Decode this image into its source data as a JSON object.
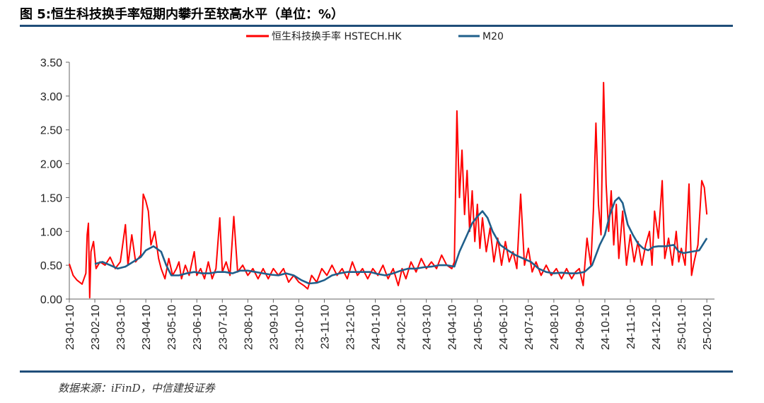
{
  "figure": {
    "title": "图 5:恒生科技换手率短期内攀升至较高水平（单位：%）",
    "source": "数据来源：iFinD，中信建投证券"
  },
  "chart_data": {
    "type": "line",
    "ylim": [
      0,
      3.5
    ],
    "y_ticks": [
      "0.00",
      "0.50",
      "1.00",
      "1.50",
      "2.00",
      "2.50",
      "3.00",
      "3.50"
    ],
    "x_ticks": [
      "23-01-10",
      "23-02-10",
      "23-03-10",
      "23-04-10",
      "23-05-10",
      "23-06-10",
      "23-07-10",
      "23-08-10",
      "23-09-10",
      "23-10-10",
      "23-11-10",
      "23-12-10",
      "24-01-10",
      "24-02-10",
      "24-03-10",
      "24-04-10",
      "24-05-10",
      "24-06-10",
      "24-07-10",
      "24-08-10",
      "24-09-10",
      "24-10-10",
      "24-11-10",
      "24-12-10",
      "25-01-10",
      "25-02-10"
    ],
    "x_range_months": [
      0,
      25.3
    ],
    "legend_position": "top-center",
    "series": [
      {
        "name": "恒生科技换手率 HSTECH.HK",
        "color": "#ff0000",
        "points": [
          [
            0,
            0.52
          ],
          [
            0.15,
            0.35
          ],
          [
            0.3,
            0.28
          ],
          [
            0.5,
            0.22
          ],
          [
            0.65,
            0.38
          ],
          [
            0.7,
            0.95
          ],
          [
            0.75,
            1.12
          ],
          [
            0.8,
            0.02
          ],
          [
            0.85,
            0.7
          ],
          [
            0.95,
            0.85
          ],
          [
            1.05,
            0.45
          ],
          [
            1.2,
            0.55
          ],
          [
            1.4,
            0.5
          ],
          [
            1.6,
            0.62
          ],
          [
            1.8,
            0.45
          ],
          [
            2.0,
            0.55
          ],
          [
            2.2,
            1.1
          ],
          [
            2.3,
            0.5
          ],
          [
            2.45,
            0.95
          ],
          [
            2.6,
            0.55
          ],
          [
            2.8,
            0.65
          ],
          [
            2.9,
            1.55
          ],
          [
            3.0,
            1.45
          ],
          [
            3.1,
            1.3
          ],
          [
            3.2,
            0.8
          ],
          [
            3.35,
            1.0
          ],
          [
            3.5,
            0.6
          ],
          [
            3.6,
            0.45
          ],
          [
            3.75,
            0.3
          ],
          [
            3.9,
            0.6
          ],
          [
            4.05,
            0.35
          ],
          [
            4.2,
            0.45
          ],
          [
            4.3,
            0.55
          ],
          [
            4.4,
            0.3
          ],
          [
            4.55,
            0.5
          ],
          [
            4.7,
            0.35
          ],
          [
            4.9,
            0.7
          ],
          [
            5.0,
            0.35
          ],
          [
            5.15,
            0.45
          ],
          [
            5.3,
            0.3
          ],
          [
            5.45,
            0.55
          ],
          [
            5.6,
            0.3
          ],
          [
            5.75,
            0.45
          ],
          [
            5.9,
            1.2
          ],
          [
            6.0,
            0.4
          ],
          [
            6.15,
            0.55
          ],
          [
            6.3,
            0.35
          ],
          [
            6.45,
            1.22
          ],
          [
            6.6,
            0.4
          ],
          [
            6.8,
            0.5
          ],
          [
            7.0,
            0.35
          ],
          [
            7.2,
            0.45
          ],
          [
            7.4,
            0.3
          ],
          [
            7.6,
            0.45
          ],
          [
            7.8,
            0.3
          ],
          [
            8.0,
            0.45
          ],
          [
            8.2,
            0.35
          ],
          [
            8.4,
            0.45
          ],
          [
            8.6,
            0.25
          ],
          [
            8.8,
            0.35
          ],
          [
            9.0,
            0.25
          ],
          [
            9.2,
            0.2
          ],
          [
            9.35,
            0.15
          ],
          [
            9.5,
            0.35
          ],
          [
            9.7,
            0.25
          ],
          [
            9.9,
            0.45
          ],
          [
            10.1,
            0.35
          ],
          [
            10.3,
            0.5
          ],
          [
            10.5,
            0.35
          ],
          [
            10.7,
            0.45
          ],
          [
            10.9,
            0.3
          ],
          [
            11.1,
            0.55
          ],
          [
            11.3,
            0.35
          ],
          [
            11.5,
            0.45
          ],
          [
            11.7,
            0.3
          ],
          [
            11.9,
            0.45
          ],
          [
            12.1,
            0.35
          ],
          [
            12.3,
            0.5
          ],
          [
            12.5,
            0.3
          ],
          [
            12.7,
            0.45
          ],
          [
            12.9,
            0.2
          ],
          [
            13.05,
            0.45
          ],
          [
            13.2,
            0.3
          ],
          [
            13.4,
            0.55
          ],
          [
            13.6,
            0.4
          ],
          [
            13.8,
            0.6
          ],
          [
            14.0,
            0.45
          ],
          [
            14.2,
            0.55
          ],
          [
            14.4,
            0.45
          ],
          [
            14.6,
            0.65
          ],
          [
            14.8,
            0.5
          ],
          [
            15.0,
            0.45
          ],
          [
            15.1,
            0.55
          ],
          [
            15.2,
            2.78
          ],
          [
            15.3,
            1.5
          ],
          [
            15.4,
            2.2
          ],
          [
            15.5,
            1.25
          ],
          [
            15.6,
            1.9
          ],
          [
            15.7,
            1.0
          ],
          [
            15.8,
            1.6
          ],
          [
            15.9,
            0.85
          ],
          [
            16.0,
            1.4
          ],
          [
            16.1,
            0.75
          ],
          [
            16.2,
            1.2
          ],
          [
            16.35,
            0.7
          ],
          [
            16.5,
            1.05
          ],
          [
            16.65,
            0.55
          ],
          [
            16.8,
            0.9
          ],
          [
            16.95,
            0.5
          ],
          [
            17.1,
            0.85
          ],
          [
            17.25,
            0.55
          ],
          [
            17.4,
            0.7
          ],
          [
            17.55,
            0.45
          ],
          [
            17.7,
            1.55
          ],
          [
            17.85,
            0.5
          ],
          [
            18.0,
            0.75
          ],
          [
            18.15,
            0.4
          ],
          [
            18.3,
            0.55
          ],
          [
            18.5,
            0.35
          ],
          [
            18.7,
            0.5
          ],
          [
            18.9,
            0.35
          ],
          [
            19.1,
            0.45
          ],
          [
            19.3,
            0.3
          ],
          [
            19.5,
            0.45
          ],
          [
            19.7,
            0.3
          ],
          [
            19.85,
            0.4
          ],
          [
            20.0,
            0.45
          ],
          [
            20.15,
            0.2
          ],
          [
            20.3,
            0.9
          ],
          [
            20.45,
            0.5
          ],
          [
            20.55,
            1.3
          ],
          [
            20.65,
            2.6
          ],
          [
            20.75,
            1.4
          ],
          [
            20.85,
            0.95
          ],
          [
            20.95,
            3.2
          ],
          [
            21.05,
            1.7
          ],
          [
            21.15,
            1.0
          ],
          [
            21.25,
            1.6
          ],
          [
            21.35,
            0.8
          ],
          [
            21.45,
            1.4
          ],
          [
            21.55,
            0.6
          ],
          [
            21.7,
            1.3
          ],
          [
            21.85,
            0.5
          ],
          [
            22.0,
            0.95
          ],
          [
            22.15,
            0.55
          ],
          [
            22.3,
            0.85
          ],
          [
            22.45,
            0.5
          ],
          [
            22.6,
            0.8
          ],
          [
            22.75,
            1.0
          ],
          [
            22.85,
            0.5
          ],
          [
            22.95,
            1.3
          ],
          [
            23.1,
            0.9
          ],
          [
            23.25,
            1.75
          ],
          [
            23.35,
            0.6
          ],
          [
            23.5,
            0.9
          ],
          [
            23.65,
            0.5
          ],
          [
            23.8,
            1.0
          ],
          [
            23.9,
            0.55
          ],
          [
            24.0,
            0.75
          ],
          [
            24.15,
            0.5
          ],
          [
            24.3,
            1.7
          ],
          [
            24.4,
            0.35
          ],
          [
            24.5,
            0.55
          ],
          [
            24.65,
            0.8
          ],
          [
            24.8,
            1.75
          ],
          [
            24.9,
            1.65
          ],
          [
            25.0,
            1.25
          ]
        ]
      },
      {
        "name": "M20",
        "color": "#1f5f8b",
        "points": [
          [
            1.0,
            0.52
          ],
          [
            1.3,
            0.55
          ],
          [
            1.6,
            0.5
          ],
          [
            1.9,
            0.45
          ],
          [
            2.2,
            0.48
          ],
          [
            2.5,
            0.55
          ],
          [
            2.8,
            0.62
          ],
          [
            3.0,
            0.72
          ],
          [
            3.3,
            0.78
          ],
          [
            3.6,
            0.7
          ],
          [
            3.8,
            0.5
          ],
          [
            4.0,
            0.35
          ],
          [
            4.3,
            0.35
          ],
          [
            4.6,
            0.38
          ],
          [
            4.9,
            0.4
          ],
          [
            5.2,
            0.38
          ],
          [
            5.5,
            0.38
          ],
          [
            5.8,
            0.4
          ],
          [
            6.1,
            0.4
          ],
          [
            6.4,
            0.38
          ],
          [
            6.7,
            0.42
          ],
          [
            7.0,
            0.42
          ],
          [
            7.3,
            0.4
          ],
          [
            7.6,
            0.38
          ],
          [
            7.9,
            0.36
          ],
          [
            8.2,
            0.35
          ],
          [
            8.5,
            0.38
          ],
          [
            8.8,
            0.35
          ],
          [
            9.1,
            0.28
          ],
          [
            9.4,
            0.23
          ],
          [
            9.7,
            0.24
          ],
          [
            10.0,
            0.28
          ],
          [
            10.3,
            0.35
          ],
          [
            10.6,
            0.38
          ],
          [
            10.9,
            0.4
          ],
          [
            11.2,
            0.4
          ],
          [
            11.5,
            0.4
          ],
          [
            11.8,
            0.4
          ],
          [
            12.1,
            0.37
          ],
          [
            12.4,
            0.35
          ],
          [
            12.7,
            0.38
          ],
          [
            13.0,
            0.42
          ],
          [
            13.3,
            0.45
          ],
          [
            13.6,
            0.45
          ],
          [
            13.9,
            0.47
          ],
          [
            14.2,
            0.48
          ],
          [
            14.5,
            0.5
          ],
          [
            14.8,
            0.5
          ],
          [
            15.1,
            0.48
          ],
          [
            15.3,
            0.7
          ],
          [
            15.6,
            0.95
          ],
          [
            15.8,
            1.12
          ],
          [
            16.0,
            1.22
          ],
          [
            16.2,
            1.3
          ],
          [
            16.4,
            1.2
          ],
          [
            16.6,
            1.0
          ],
          [
            16.9,
            0.8
          ],
          [
            17.2,
            0.72
          ],
          [
            17.5,
            0.65
          ],
          [
            17.8,
            0.6
          ],
          [
            18.1,
            0.55
          ],
          [
            18.4,
            0.45
          ],
          [
            18.7,
            0.4
          ],
          [
            19.0,
            0.38
          ],
          [
            19.3,
            0.39
          ],
          [
            19.6,
            0.38
          ],
          [
            19.9,
            0.38
          ],
          [
            20.2,
            0.4
          ],
          [
            20.5,
            0.5
          ],
          [
            20.8,
            0.8
          ],
          [
            21.0,
            0.95
          ],
          [
            21.2,
            1.25
          ],
          [
            21.4,
            1.45
          ],
          [
            21.55,
            1.5
          ],
          [
            21.7,
            1.42
          ],
          [
            21.9,
            1.1
          ],
          [
            22.1,
            0.95
          ],
          [
            22.3,
            0.82
          ],
          [
            22.5,
            0.75
          ],
          [
            22.7,
            0.72
          ],
          [
            22.9,
            0.77
          ],
          [
            23.1,
            0.78
          ],
          [
            23.4,
            0.78
          ],
          [
            23.7,
            0.8
          ],
          [
            23.9,
            0.7
          ],
          [
            24.1,
            0.68
          ],
          [
            24.4,
            0.7
          ],
          [
            24.7,
            0.72
          ],
          [
            25.0,
            0.9
          ]
        ]
      }
    ]
  }
}
